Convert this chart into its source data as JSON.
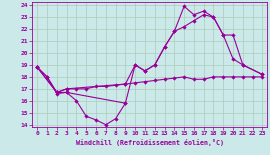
{
  "xlabel": "Windchill (Refroidissement éolien,°C)",
  "bg_color": "#cbe9e9",
  "line_color": "#990099",
  "grid_color": "#aaccbb",
  "xlim": [
    -0.5,
    23.5
  ],
  "ylim": [
    13.8,
    24.3
  ],
  "xticks": [
    0,
    1,
    2,
    3,
    4,
    5,
    6,
    7,
    8,
    9,
    10,
    11,
    12,
    13,
    14,
    15,
    16,
    17,
    18,
    19,
    20,
    21,
    22,
    23
  ],
  "yticks": [
    14,
    15,
    16,
    17,
    18,
    19,
    20,
    21,
    22,
    23,
    24
  ],
  "line1_x": [
    0,
    1,
    2,
    3,
    4,
    5,
    6,
    7,
    8,
    9
  ],
  "line1_y": [
    18.8,
    18.0,
    16.6,
    16.7,
    16.0,
    14.7,
    14.4,
    14.0,
    14.5,
    15.8
  ],
  "line2_x": [
    0,
    1,
    2,
    3,
    9,
    10,
    11,
    12,
    13,
    14,
    15,
    16,
    17,
    18,
    19,
    20,
    21,
    23
  ],
  "line2_y": [
    18.8,
    18.0,
    16.7,
    16.7,
    15.8,
    19.0,
    18.5,
    19.0,
    20.5,
    21.8,
    22.2,
    22.7,
    23.2,
    23.0,
    21.5,
    19.5,
    19.0,
    18.2
  ],
  "line3_x": [
    0,
    2,
    3,
    4,
    5,
    6,
    7,
    8,
    9,
    10,
    11,
    12,
    13,
    14,
    15,
    16,
    17,
    18,
    19,
    20,
    21,
    22,
    23
  ],
  "line3_y": [
    18.8,
    16.7,
    17.0,
    17.0,
    17.0,
    17.2,
    17.2,
    17.3,
    17.4,
    17.5,
    17.6,
    17.7,
    17.8,
    17.9,
    18.0,
    17.8,
    17.8,
    18.0,
    18.0,
    18.0,
    18.0,
    18.0,
    18.0
  ],
  "line4_x": [
    0,
    2,
    3,
    9,
    10,
    11,
    12,
    13,
    14,
    15,
    16,
    17,
    18,
    19,
    20,
    21,
    23
  ],
  "line4_y": [
    18.8,
    16.7,
    17.0,
    17.4,
    19.0,
    18.5,
    19.0,
    20.5,
    21.8,
    23.9,
    23.2,
    23.5,
    23.0,
    21.5,
    21.5,
    19.0,
    18.2
  ]
}
